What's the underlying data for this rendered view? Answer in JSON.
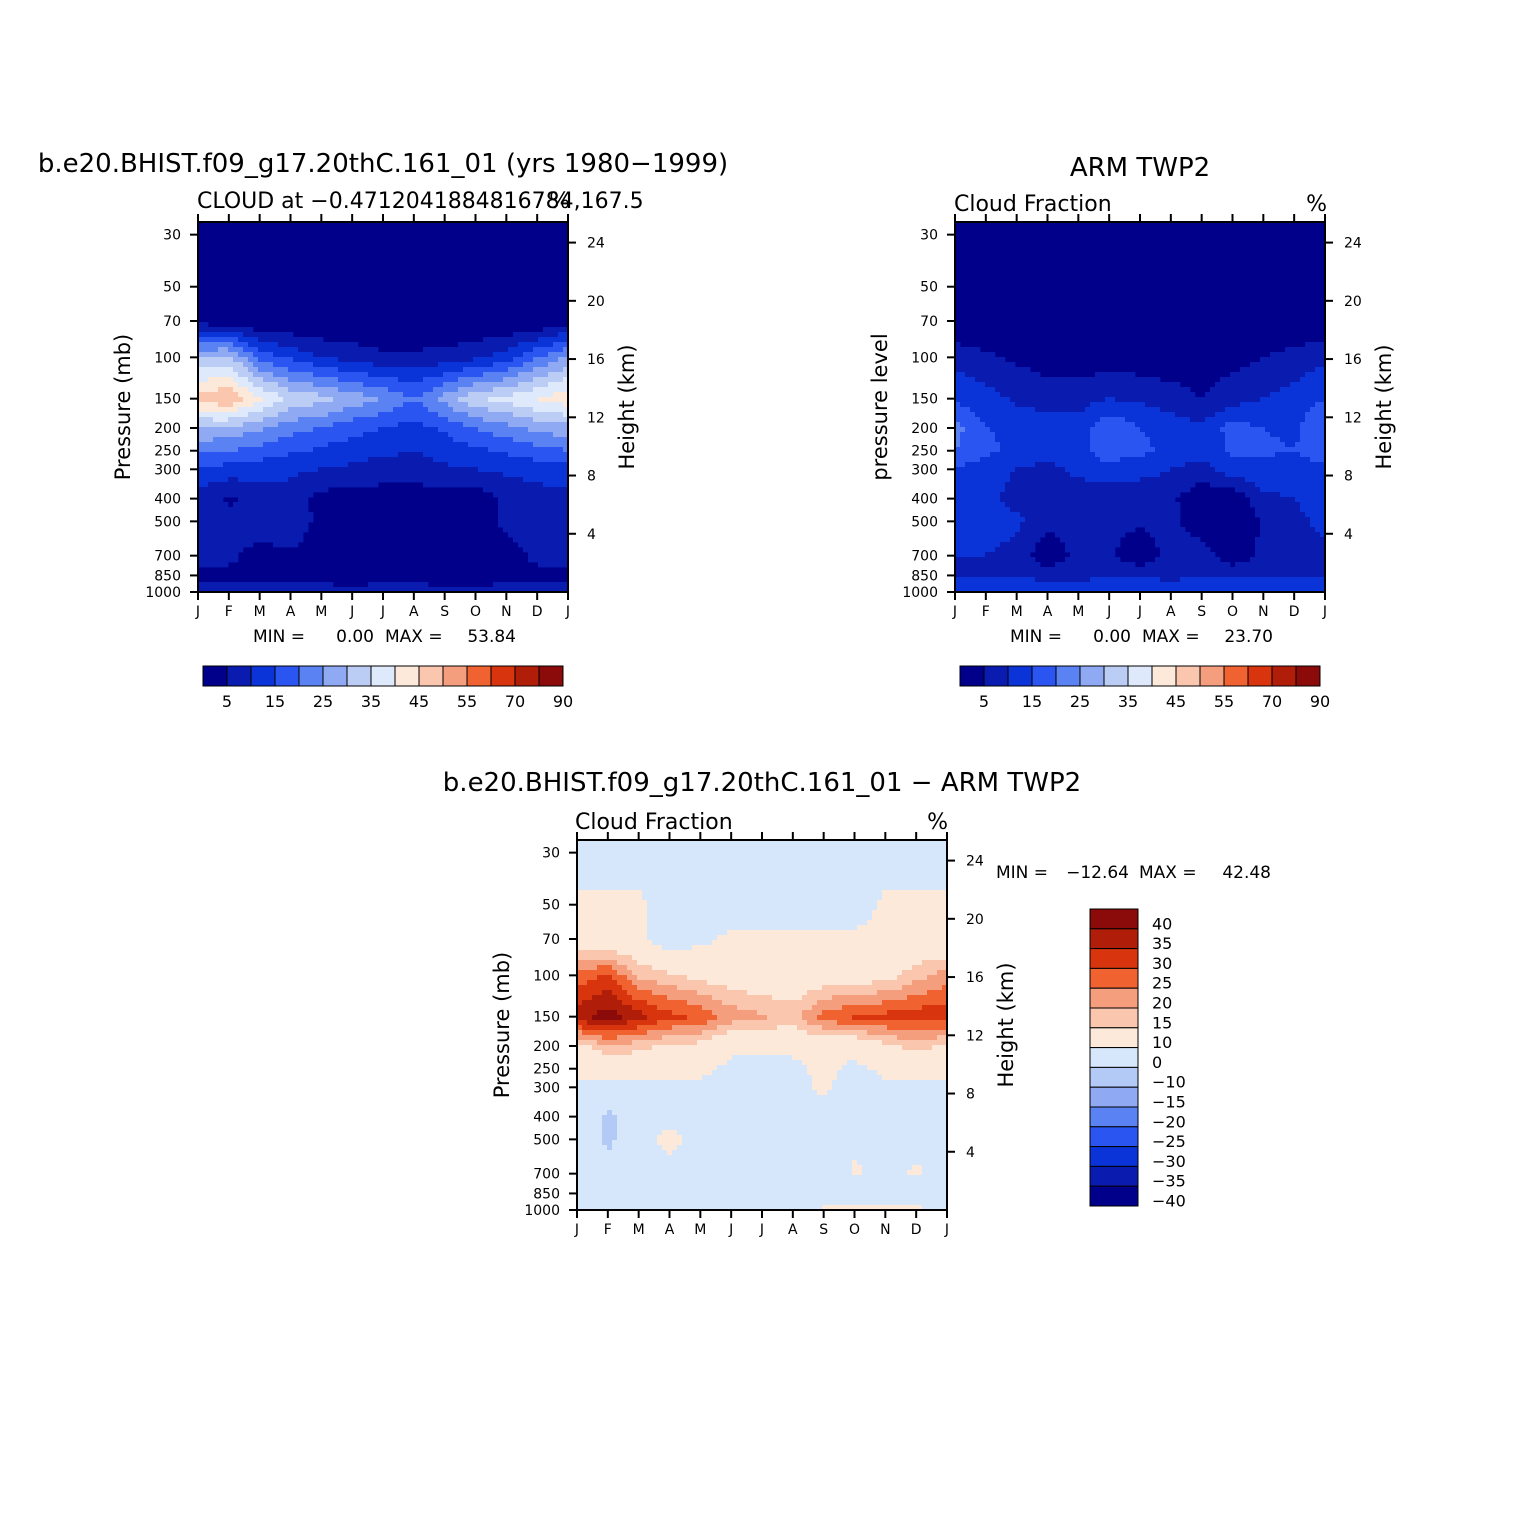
{
  "months": [
    "J",
    "F",
    "M",
    "A",
    "M",
    "J",
    "J",
    "A",
    "S",
    "O",
    "N",
    "D",
    "J"
  ],
  "pressure_ticks": [
    "30",
    "50",
    "70",
    "100",
    "150",
    "200",
    "250",
    "300",
    "400",
    "500",
    "700",
    "850",
    "1000"
  ],
  "height_ticks": [
    "24",
    "20",
    "16",
    "12",
    "8",
    "4"
  ],
  "colors": {
    "abs": [
      "#00008B",
      "#0A1CB0",
      "#0A34D8",
      "#2A55F0",
      "#5A82F2",
      "#8FA9F2",
      "#BCCDF5",
      "#DEEAFB",
      "#FCE9DA",
      "#FAC6AE",
      "#F49E7E",
      "#F0622F",
      "#D8350E",
      "#B01E0A",
      "#8B0A0A"
    ],
    "diff": [
      "#00008B",
      "#0A1CB0",
      "#0A34D8",
      "#2A55F0",
      "#5A82F2",
      "#8FA9F2",
      "#B3C9F6",
      "#D7E7FB",
      "#FCE9DA",
      "#FAC6AE",
      "#F49E7E",
      "#F0622F",
      "#D8350E",
      "#B01E0A",
      "#8B0A0A"
    ]
  },
  "chart_data": [
    {
      "type": "heatmap",
      "id": "model",
      "title": "b.e20.BHIST.f09_g17.20thC.161_01 (yrs 1980−1999)",
      "subtitle_left": "CLOUD at −0.4712041884816784,167.5",
      "subtitle_right": "%",
      "ylabel": "Pressure (mb)",
      "ylabel_right": "Height (km)",
      "xlabel": "",
      "min_label": "MIN =",
      "min_value": "0.00",
      "max_label": "MAX =",
      "max_value": "53.84",
      "colorbar_labels": [
        "5",
        "15",
        "25",
        "35",
        "45",
        "55",
        "70",
        "90"
      ],
      "field": {
        "levels_hpa": [
          30,
          50,
          70,
          100,
          150,
          200,
          250,
          300,
          400,
          500,
          700,
          850,
          1000
        ],
        "months": [
          1,
          2,
          3,
          4,
          5,
          6,
          7,
          8,
          9,
          10,
          11,
          12,
          13
        ],
        "values": [
          [
            0,
            0,
            0,
            0,
            0,
            0,
            0,
            0,
            0,
            0,
            0,
            0,
            0
          ],
          [
            0,
            0,
            0,
            0,
            0,
            0,
            0,
            0,
            0,
            0,
            0,
            0,
            0
          ],
          [
            3,
            1,
            0,
            0,
            0,
            0,
            0,
            0,
            0,
            0,
            0,
            0,
            2
          ],
          [
            30,
            32,
            18,
            14,
            10,
            8,
            6,
            6,
            7,
            9,
            12,
            20,
            26
          ],
          [
            47,
            50,
            41,
            34,
            32,
            28,
            25,
            20,
            27,
            34,
            37,
            40,
            44
          ],
          [
            30,
            29,
            26,
            22,
            20,
            17,
            15,
            13,
            16,
            20,
            23,
            27,
            28
          ],
          [
            21,
            20,
            18,
            16,
            14,
            12,
            11,
            10,
            12,
            14,
            16,
            18,
            20
          ],
          [
            14,
            13,
            12,
            11,
            10,
            9,
            8,
            8,
            9,
            10,
            11,
            12,
            13
          ],
          [
            8,
            4,
            7,
            8,
            3,
            2,
            2,
            2,
            2,
            2,
            6,
            8,
            8
          ],
          [
            10,
            7,
            8,
            9,
            3,
            2,
            2,
            2,
            2,
            3,
            6,
            9,
            9
          ],
          [
            7,
            6,
            3,
            4,
            2,
            1,
            1,
            1,
            1,
            1,
            3,
            6,
            6
          ],
          [
            4,
            4,
            3,
            3,
            3,
            2,
            3,
            3,
            2,
            2,
            3,
            4,
            4
          ],
          [
            7,
            7,
            7,
            7,
            7,
            7,
            7,
            7,
            7,
            7,
            7,
            7,
            7
          ]
        ]
      }
    },
    {
      "type": "heatmap",
      "id": "obs",
      "title": "ARM TWP2",
      "subtitle_left": "Cloud Fraction",
      "subtitle_right": "%",
      "ylabel": "pressure level",
      "ylabel_right": "Height (km)",
      "xlabel": "",
      "min_label": "MIN =",
      "min_value": "0.00",
      "max_label": "MAX =",
      "max_value": "23.70",
      "colorbar_labels": [
        "5",
        "15",
        "25",
        "35",
        "45",
        "55",
        "70",
        "90"
      ],
      "field": {
        "levels_hpa": [
          30,
          50,
          70,
          100,
          150,
          200,
          250,
          300,
          400,
          500,
          700,
          850,
          1000
        ],
        "months": [
          1,
          2,
          3,
          4,
          5,
          6,
          7,
          8,
          9,
          10,
          11,
          12,
          13
        ],
        "values": [
          [
            0,
            0,
            0,
            0,
            0,
            0,
            0,
            0,
            0,
            0,
            0,
            0,
            0
          ],
          [
            0,
            0,
            0,
            0,
            0,
            0,
            0,
            0,
            0,
            0,
            0,
            0,
            0
          ],
          [
            0,
            0,
            0,
            0,
            0,
            0,
            0,
            0,
            0,
            0,
            0,
            0,
            0
          ],
          [
            8,
            6,
            4,
            3,
            2,
            2,
            2,
            2,
            2,
            3,
            5,
            7,
            9
          ],
          [
            14,
            12,
            9,
            7,
            8,
            10,
            9,
            7,
            5,
            8,
            10,
            12,
            15
          ],
          [
            22,
            15,
            14,
            13,
            12,
            19,
            15,
            13,
            11,
            17,
            15,
            14,
            20
          ],
          [
            20,
            16,
            14,
            15,
            14,
            17,
            16,
            14,
            12,
            16,
            16,
            15,
            18
          ],
          [
            15,
            12,
            10,
            7,
            12,
            14,
            12,
            10,
            8,
            13,
            13,
            12,
            14
          ],
          [
            13,
            12,
            8,
            6,
            5,
            6,
            6,
            6,
            1,
            1,
            9,
            10,
            12
          ],
          [
            12,
            13,
            11,
            7,
            6,
            6,
            6,
            7,
            1,
            1,
            5,
            9,
            11
          ],
          [
            10,
            10,
            8,
            1,
            7,
            6,
            1,
            7,
            8,
            1,
            7,
            8,
            9
          ],
          [
            9,
            10,
            9,
            8,
            8,
            9,
            9,
            8,
            9,
            9,
            9,
            9,
            9
          ],
          [
            15,
            15,
            15,
            15,
            15,
            15,
            15,
            15,
            15,
            15,
            15,
            15,
            15
          ]
        ]
      }
    },
    {
      "type": "heatmap",
      "id": "diff",
      "title": "b.e20.BHIST.f09_g17.20thC.161_01 − ARM TWP2",
      "subtitle_left": "Cloud Fraction",
      "subtitle_right": "%",
      "ylabel": "Pressure (mb)",
      "ylabel_right": "Height (km)",
      "xlabel": "",
      "min_label": "MIN =",
      "min_value": "−12.64",
      "max_label": "MAX =",
      "max_value": "42.48",
      "colorbar_labels": [
        "40",
        "35",
        "30",
        "25",
        "20",
        "15",
        "10",
        "0",
        "−10",
        "−15",
        "−20",
        "−25",
        "−30",
        "−35",
        "−40"
      ],
      "field": {
        "levels_hpa": [
          30,
          50,
          70,
          100,
          150,
          200,
          250,
          300,
          400,
          500,
          700,
          850,
          1000
        ],
        "months": [
          1,
          2,
          3,
          4,
          5,
          6,
          7,
          8,
          9,
          10,
          11,
          12,
          13
        ],
        "values": [
          [
            -5,
            -5,
            -5,
            -5,
            -5,
            -5,
            -5,
            -5,
            -5,
            -5,
            -5,
            -5,
            -5
          ],
          [
            2,
            2,
            2,
            -5,
            -5,
            -5,
            -5,
            -5,
            -5,
            -5,
            2,
            2,
            2
          ],
          [
            3,
            3,
            2,
            -5,
            -2,
            2,
            2,
            2,
            2,
            2,
            3,
            3,
            3
          ],
          [
            22,
            26,
            14,
            11,
            8,
            6,
            4,
            4,
            5,
            6,
            7,
            13,
            17
          ],
          [
            33,
            38,
            32,
            27,
            24,
            18,
            16,
            13,
            22,
            26,
            27,
            28,
            29
          ],
          [
            8,
            14,
            12,
            9,
            8,
            2,
            2,
            2,
            5,
            3,
            8,
            13,
            8
          ],
          [
            2,
            4,
            4,
            2,
            2,
            -2,
            -2,
            -2,
            2,
            -2,
            2,
            3,
            2
          ],
          [
            -2,
            -2,
            -2,
            -2,
            -2,
            -3,
            -4,
            -2,
            1,
            -3,
            -2,
            -2,
            -2
          ],
          [
            -4,
            -12,
            -3,
            -2,
            -2,
            -2,
            -4,
            -4,
            -2,
            -2,
            -3,
            -2,
            -4
          ],
          [
            -2,
            -12,
            -3,
            2,
            -2,
            -4,
            -4,
            -5,
            -2,
            -2,
            -2,
            -2,
            -2
          ],
          [
            -2,
            -6,
            -5,
            -3,
            -5,
            -5,
            -2,
            -4,
            -5,
            1,
            -2,
            1,
            -3
          ],
          [
            -5,
            -6,
            -6,
            -5,
            -5,
            -7,
            -6,
            -5,
            -7,
            -7,
            -6,
            -5,
            -5
          ],
          [
            -8,
            -8,
            -8,
            -8,
            -8,
            -8,
            -8,
            -8,
            2,
            2,
            2,
            2,
            -8
          ]
        ]
      }
    }
  ]
}
